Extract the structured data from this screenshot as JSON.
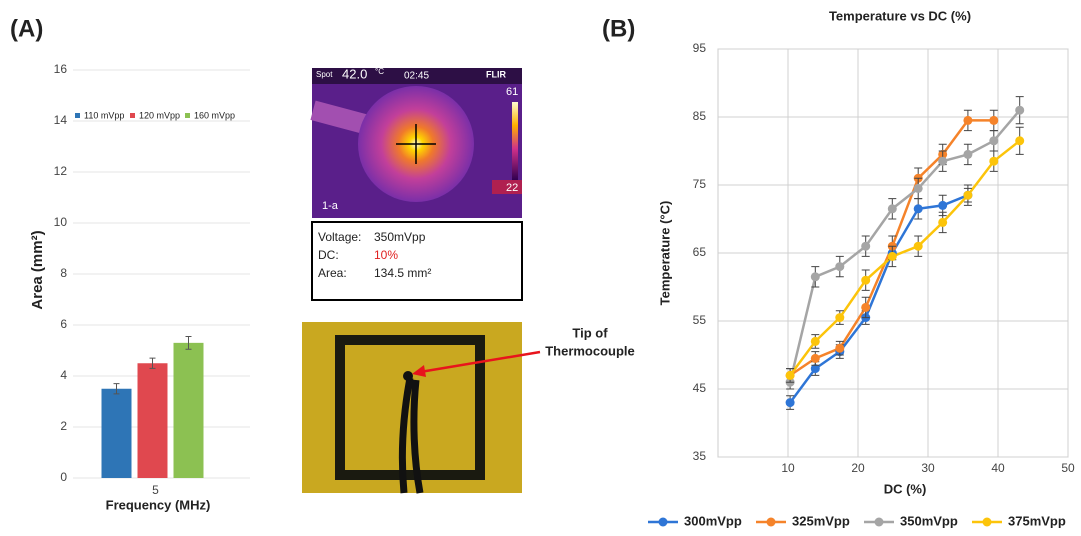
{
  "panels": [
    "(A)",
    "(B)"
  ],
  "chart_data": [
    {
      "type": "bar",
      "categories": [
        "5"
      ],
      "series": [
        {
          "name": "110 mVpp",
          "color": "#2e75b6",
          "values": [
            3.5
          ],
          "errors": [
            0.2
          ]
        },
        {
          "name": "120 mVpp",
          "color": "#e0484f",
          "values": [
            4.5
          ],
          "errors": [
            0.2
          ]
        },
        {
          "name": "160 mVpp",
          "color": "#8cc152",
          "values": [
            5.3
          ],
          "errors": [
            0.25
          ]
        }
      ],
      "ylim": [
        0,
        16
      ],
      "yticks": [
        0,
        2,
        4,
        6,
        8,
        10,
        12,
        14,
        16
      ],
      "grid": true,
      "ylabel": "Area (mm²)",
      "xlabel": "Frequency (MHz)",
      "legend": "top"
    },
    {
      "type": "line",
      "title": "Temperature vs DC (%)",
      "xlabel": "DC (%)",
      "ylabel": "Temperature (°C)",
      "x": [
        10.3,
        13.9,
        17.4,
        21.1,
        24.9,
        28.6,
        32.1,
        35.7,
        39.4,
        43.1
      ],
      "xlim": [
        0,
        50
      ],
      "xticks": [
        10,
        20,
        30,
        40,
        50
      ],
      "ylim": [
        35,
        95
      ],
      "yticks": [
        35,
        45,
        55,
        65,
        75,
        85,
        95
      ],
      "grid": true,
      "legend": "bottom",
      "series": [
        {
          "name": "300mVpp",
          "color": "#2e75d6",
          "values": [
            43,
            48,
            50.5,
            55.5,
            65,
            71.5,
            72,
            73.5,
            null,
            null
          ],
          "errors": [
            1,
            1,
            1,
            1,
            1,
            1.5,
            1.5,
            1,
            null,
            null
          ]
        },
        {
          "name": "325mVpp",
          "color": "#f5832a",
          "values": [
            47,
            49.5,
            51,
            57,
            66,
            76,
            79.5,
            84.5,
            84.5,
            null
          ],
          "errors": [
            1,
            1,
            1,
            1.5,
            1.5,
            1.5,
            1.5,
            1.5,
            1.5,
            null
          ]
        },
        {
          "name": "350mVpp",
          "color": "#a5a5a5",
          "values": [
            46,
            61.5,
            63,
            66,
            71.5,
            74.5,
            78.5,
            79.5,
            81.5,
            86
          ],
          "errors": [
            1,
            1.5,
            1.5,
            1.5,
            1.5,
            1.5,
            1.5,
            1.5,
            1.5,
            2
          ]
        },
        {
          "name": "375mVpp",
          "color": "#fcc40a",
          "values": [
            47,
            52,
            55.5,
            61,
            64.5,
            66,
            69.5,
            73.5,
            78.5,
            81.5
          ],
          "errors": [
            1,
            1,
            1,
            1.5,
            1.5,
            1.5,
            1.5,
            1.5,
            1.5,
            2
          ]
        }
      ]
    }
  ],
  "thermal_image": {
    "spot_label": "Spot",
    "spot_value": "42.0",
    "unit": "°C",
    "time": "02:45",
    "brand": "FLIR",
    "scale_max": "61",
    "scale_min": "22",
    "frame": "1-a"
  },
  "info_box": {
    "rows": [
      [
        "Voltage:",
        "350mVpp"
      ],
      [
        "DC:",
        "10%"
      ],
      [
        "Area:",
        "134.5 mm²"
      ]
    ]
  },
  "photo": {
    "annotation": [
      "Tip of",
      "Thermocouple"
    ]
  }
}
